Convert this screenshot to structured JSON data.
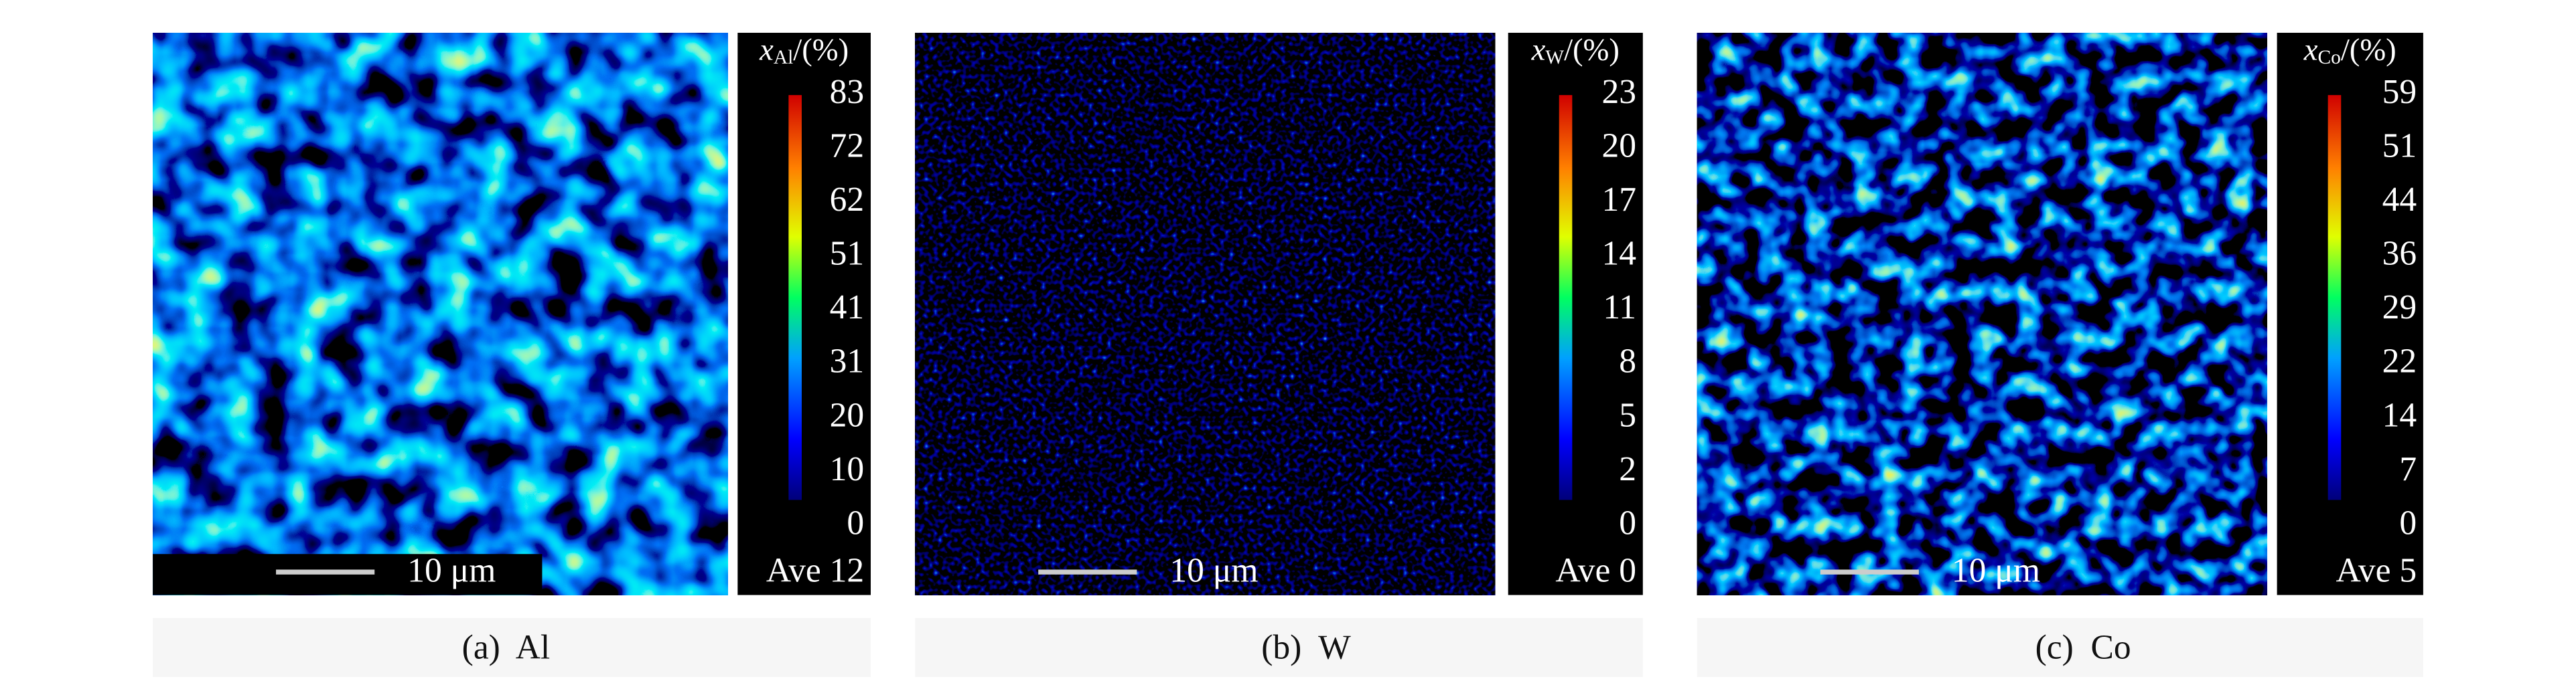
{
  "panels": [
    {
      "colorbar": {
        "symbol": "x",
        "subscript": "Al",
        "unit": "/(%)",
        "ticks": [
          83,
          72,
          62,
          51,
          41,
          31,
          20,
          10,
          0
        ],
        "average": "Ave 12"
      },
      "scale_bar": "10 μm",
      "caption": "(a)  Al"
    },
    {
      "colorbar": {
        "symbol": "x",
        "subscript": "W",
        "unit": "/(%)",
        "ticks": [
          23,
          20,
          17,
          14,
          11,
          8,
          5,
          2,
          0
        ],
        "average": "Ave 0"
      },
      "scale_bar": "10 μm",
      "caption": "(b)  W"
    },
    {
      "colorbar": {
        "symbol": "x",
        "subscript": "Co",
        "unit": "/(%)",
        "ticks": [
          59,
          51,
          44,
          36,
          29,
          22,
          14,
          7,
          0
        ],
        "average": "Ave 5"
      },
      "scale_bar": "10 μm",
      "caption": "(c)  Co"
    }
  ]
}
